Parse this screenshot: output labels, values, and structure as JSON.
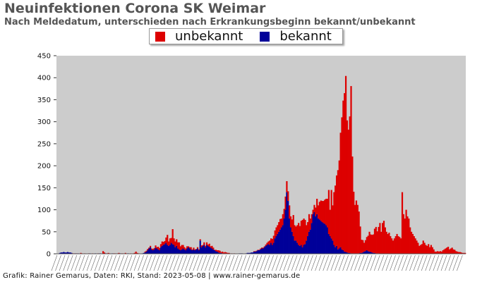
{
  "header": {
    "title": "Neuinfektionen Corona SK Weimar",
    "subtitle": "Nach Meldedatum, unterschieden nach Erkrankungsbeginn bekannt/unbekannt"
  },
  "footer": {
    "credit": "Grafik: Rainer Gemarus, Daten: RKI, Stand: 2023-05-08 | www.rainer-gemarus.de"
  },
  "colors": {
    "unbekannt": "#dd0000",
    "bekannt": "#000099",
    "plot_background": "#cccccc"
  },
  "chart_data": {
    "type": "bar",
    "stacked": true,
    "title": "Neuinfektionen Corona SK Weimar",
    "subtitle": "Nach Meldedatum, unterschieden nach Erkrankungsbeginn bekannt/unbekannt",
    "legend_position": "top-center",
    "grid": false,
    "ylim": [
      0,
      450
    ],
    "yticks": [
      0,
      50,
      100,
      150,
      200,
      250,
      300,
      350,
      400,
      450
    ],
    "series": [
      {
        "name": "unbekannt",
        "color": "#dd0000",
        "values": [
          0,
          0,
          0,
          0,
          0,
          0,
          0,
          0,
          0,
          0,
          0,
          0,
          1,
          1,
          0,
          1,
          0,
          0,
          2,
          1,
          0,
          1,
          0,
          0,
          1,
          0,
          0,
          1,
          0,
          0,
          0,
          1,
          0,
          0,
          0,
          6,
          3,
          0,
          1,
          2,
          1,
          0,
          0,
          1,
          1,
          0,
          1,
          2,
          0,
          1,
          1,
          0,
          2,
          0,
          0,
          0,
          1,
          0,
          1,
          2,
          5,
          2,
          1,
          0,
          0,
          0,
          0,
          2,
          2,
          3,
          2,
          3,
          2,
          3,
          3,
          5,
          3,
          6,
          5,
          7,
          10,
          7,
          7,
          12,
          23,
          10,
          15,
          11,
          34,
          15,
          13,
          15,
          14,
          16,
          9,
          10,
          8,
          5,
          4,
          5,
          2,
          3,
          5,
          2,
          4,
          2,
          1,
          3,
          2,
          3,
          4,
          2,
          6,
          3,
          6,
          3,
          7,
          3,
          6,
          4,
          1,
          3,
          3,
          5,
          5,
          2,
          4,
          2,
          3,
          2,
          2,
          2,
          0,
          1,
          0,
          1,
          0,
          0,
          0,
          0,
          0,
          0,
          0,
          0,
          0,
          0,
          0,
          0,
          0,
          0,
          1,
          1,
          1,
          1,
          1,
          2,
          2,
          2,
          2,
          3,
          5,
          6,
          10,
          10,
          14,
          16,
          18,
          20,
          20,
          22,
          24,
          20,
          25,
          22,
          30,
          25,
          22,
          30,
          25,
          28,
          48,
          35,
          32,
          40,
          50,
          45,
          55,
          62,
          60,
          55,
          35,
          32,
          40,
          25,
          20,
          10,
          16,
          20,
          35,
          30,
          40,
          46,
          48,
          50,
          55,
          60,
          65,
          100,
          60,
          110,
          80,
          120,
          140,
          160,
          180,
          200,
          260,
          300,
          340,
          360,
          400,
          300,
          280,
          310,
          380,
          220,
          140,
          110,
          120,
          110,
          95,
          60,
          30,
          28,
          20,
          25,
          30,
          35,
          45,
          40,
          40,
          42,
          55,
          60,
          50,
          60,
          70,
          50,
          70,
          75,
          60,
          50,
          45,
          48,
          40,
          35,
          30,
          35,
          40,
          45,
          40,
          38,
          35,
          140,
          90,
          80,
          100,
          85,
          80,
          60,
          50,
          45,
          40,
          35,
          30,
          25,
          18,
          20,
          22,
          30,
          25,
          20,
          18,
          22,
          15,
          20,
          15,
          10,
          5,
          5,
          6,
          5,
          6,
          5,
          8,
          10,
          12,
          14,
          16,
          10,
          12,
          14,
          10,
          9,
          6,
          5,
          4,
          4,
          3,
          2,
          2,
          2
        ]
      },
      {
        "name": "bekannt",
        "color": "#000099",
        "values": [
          0,
          0,
          2,
          3,
          3,
          4,
          3,
          3,
          4,
          3,
          3,
          2,
          0,
          0,
          1,
          0,
          1,
          0,
          0,
          0,
          0,
          0,
          0,
          0,
          0,
          1,
          0,
          0,
          0,
          1,
          0,
          0,
          1,
          1,
          0,
          0,
          0,
          1,
          0,
          0,
          0,
          0,
          1,
          0,
          0,
          0,
          0,
          0,
          1,
          0,
          0,
          0,
          0,
          0,
          1,
          0,
          0,
          0,
          0,
          0,
          0,
          0,
          0,
          0,
          0,
          1,
          2,
          3,
          5,
          8,
          12,
          15,
          10,
          8,
          10,
          14,
          12,
          10,
          8,
          15,
          18,
          20,
          22,
          25,
          20,
          18,
          20,
          25,
          22,
          20,
          15,
          18,
          12,
          10,
          8,
          10,
          12,
          10,
          8,
          12,
          15,
          12,
          10,
          8,
          10,
          8,
          10,
          12,
          8,
          30,
          15,
          18,
          20,
          15,
          20,
          18,
          16,
          14,
          12,
          10,
          8,
          6,
          5,
          3,
          2,
          2,
          1,
          1,
          1,
          1,
          0,
          0,
          0,
          0,
          0,
          0,
          0,
          0,
          0,
          1,
          1,
          1,
          0,
          0,
          1,
          2,
          2,
          2,
          3,
          3,
          5,
          5,
          6,
          8,
          8,
          10,
          12,
          12,
          15,
          18,
          20,
          22,
          20,
          25,
          20,
          25,
          35,
          40,
          45,
          50,
          55,
          60,
          65,
          80,
          100,
          140,
          120,
          80,
          60,
          50,
          40,
          30,
          30,
          25,
          20,
          18,
          20,
          15,
          20,
          22,
          30,
          40,
          50,
          55,
          70,
          90,
          95,
          85,
          90,
          80,
          78,
          75,
          72,
          70,
          68,
          65,
          60,
          45,
          40,
          35,
          30,
          20,
          15,
          18,
          10,
          12,
          15,
          10,
          8,
          5,
          4,
          3,
          2,
          2,
          1,
          1,
          1,
          1,
          1,
          1,
          1,
          2,
          2,
          3,
          5,
          6,
          8,
          6,
          5,
          4,
          3,
          2,
          2,
          1,
          1,
          1,
          0,
          0,
          0,
          0,
          0,
          0,
          0,
          0,
          0,
          0,
          0,
          0,
          0,
          0,
          0,
          0,
          0,
          0,
          0,
          0,
          0,
          0,
          0,
          0,
          0,
          0,
          0,
          0,
          0,
          0,
          0,
          0,
          0,
          0,
          0,
          0,
          0,
          0,
          0,
          0,
          0,
          0,
          0,
          0,
          0,
          0,
          0,
          0,
          0,
          0,
          0,
          0,
          0,
          0,
          0,
          0,
          0,
          0,
          0,
          0,
          0,
          0,
          0,
          0,
          0
        ]
      }
    ]
  }
}
